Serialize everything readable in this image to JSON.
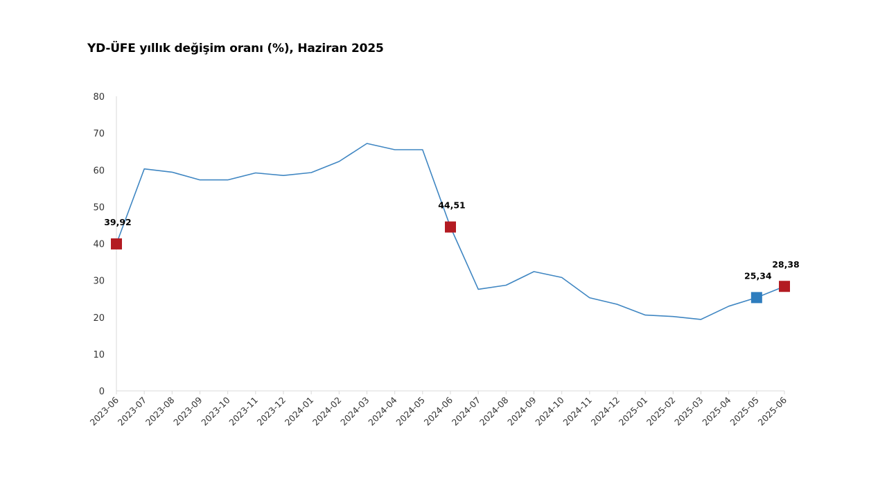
{
  "chart_data": {
    "type": "line",
    "title": "YD-ÜFE yıllık değişim oranı (%), Haziran 2025",
    "xlabel": "",
    "ylabel": "",
    "ylim": [
      0,
      80
    ],
    "yticks": [
      "0",
      "10",
      "20",
      "30",
      "40",
      "50",
      "60",
      "70",
      "80"
    ],
    "grid": false,
    "categories": [
      "2023-06",
      "2023-07",
      "2023-08",
      "2023-09",
      "2023-10",
      "2023-11",
      "2023-12",
      "2024-01",
      "2024-02",
      "2024-03",
      "2024-04",
      "2024-05",
      "2024-06",
      "2024-07",
      "2024-08",
      "2024-09",
      "2024-10",
      "2024-11",
      "2024-12",
      "2025-01",
      "2025-02",
      "2025-03",
      "2025-04",
      "2025-05",
      "2025-06"
    ],
    "series": [
      {
        "values": [
          39.92,
          60.3,
          59.4,
          57.3,
          57.3,
          59.2,
          58.5,
          59.3,
          62.3,
          67.2,
          65.5,
          65.5,
          44.51,
          27.6,
          28.7,
          32.4,
          30.8,
          25.3,
          23.5,
          20.6,
          20.2,
          19.4,
          23.0,
          25.34,
          28.38
        ]
      }
    ],
    "highlighted_points": [
      {
        "category": "2023-06",
        "value": 39.92,
        "label": "39,92",
        "color": "#b31b22"
      },
      {
        "category": "2024-06",
        "value": 44.51,
        "label": "44,51",
        "color": "#b31b22"
      },
      {
        "category": "2025-05",
        "value": 25.34,
        "label": "25,34",
        "color": "#2e7dbe"
      },
      {
        "category": "2025-06",
        "value": 28.38,
        "label": "28,38",
        "color": "#b31b22"
      }
    ],
    "colors": {
      "line": "#3f86c2",
      "axis": "#d9d9d9"
    }
  }
}
